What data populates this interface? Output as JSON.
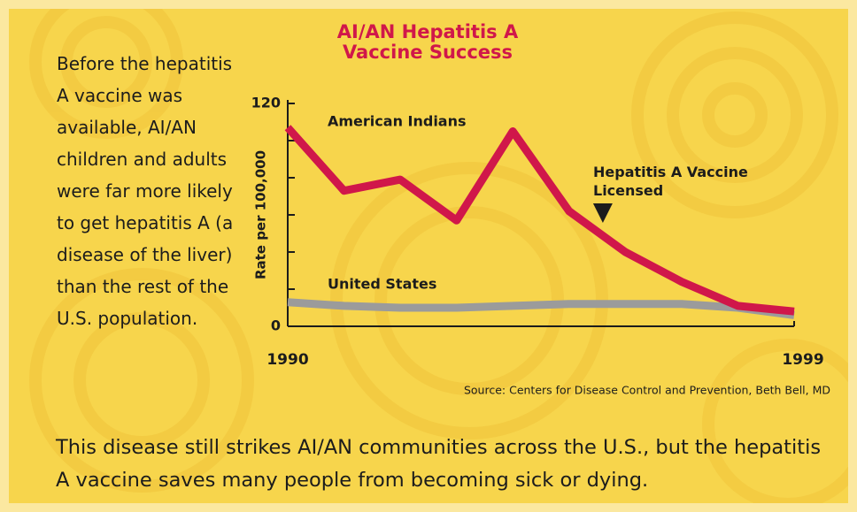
{
  "chart_data": {
    "type": "line",
    "title": "AI/AN Hepatitis A Vaccine Success",
    "y_label": "Rate per 100,000",
    "source": "Source: Centers for Disease Control and Prevention, Beth Bell, MD",
    "x": [
      1990,
      1991,
      1992,
      1993,
      1994,
      1995,
      1996,
      1997,
      1998,
      1999
    ],
    "xlim": [
      1990,
      1999
    ],
    "xticks": [
      1990,
      1999
    ],
    "ylim": [
      0,
      120
    ],
    "yticks": [
      0,
      120
    ],
    "yminor": [
      20,
      40,
      60,
      80,
      100
    ],
    "series": [
      {
        "name": "American Indians",
        "color": "#d0174a",
        "values": [
          107,
          73,
          79,
          57,
          105,
          62,
          40,
          24,
          11,
          8
        ]
      },
      {
        "name": "United States",
        "color": "#9b9b9b",
        "values": [
          13,
          11,
          10,
          10,
          11,
          12,
          12,
          12,
          10,
          6
        ]
      }
    ],
    "annotation": {
      "text": "Hepatitis A Vaccine Licensed",
      "x": 1995.6
    }
  },
  "sidebar": "Before the hepatitis A vaccine was available, AI/AN children and adults were far more likely to get hepatitis A (a disease of the liver) than the rest of the U.S. population.",
  "footer": "This disease still strikes AI/AN communities across the U.S., but the hepatitis A vaccine saves many people from becoming sick or dying."
}
